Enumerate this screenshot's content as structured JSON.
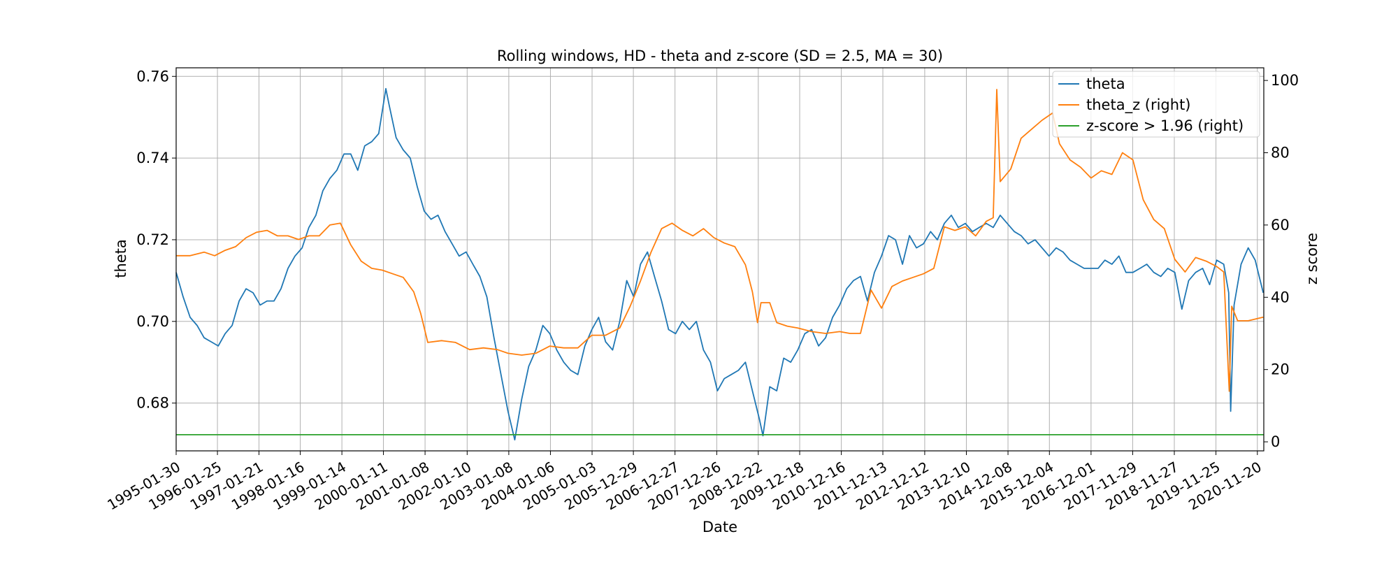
{
  "chart_data": {
    "type": "line",
    "title": "Rolling windows, HD - theta and z-score (SD = 2.5, MA = 30)",
    "xlabel": "Date",
    "ylabel": "theta",
    "y2label": "z score",
    "grid": true,
    "legend_position": "top-right",
    "x_range": [
      "1995-01-30",
      "2021-01-15"
    ],
    "ylim": [
      0.6683,
      0.7621
    ],
    "y2lim": [
      -2.5,
      103.5
    ],
    "x_ticks": [
      "1995-01-30",
      "1996-01-25",
      "1997-01-21",
      "1998-01-16",
      "1999-01-14",
      "2000-01-11",
      "2001-01-08",
      "2002-01-10",
      "2003-01-08",
      "2004-01-06",
      "2005-01-03",
      "2005-12-29",
      "2006-12-27",
      "2007-12-26",
      "2008-12-22",
      "2009-12-18",
      "2010-12-16",
      "2011-12-13",
      "2012-12-12",
      "2013-12-10",
      "2014-12-08",
      "2015-12-04",
      "2016-12-01",
      "2017-11-29",
      "2018-11-27",
      "2019-11-25",
      "2020-11-20"
    ],
    "y_ticks": [
      "0.68",
      "0.70",
      "0.72",
      "0.74",
      "0.76"
    ],
    "y2_ticks": [
      "0",
      "20",
      "40",
      "60",
      "80",
      "100"
    ],
    "series": [
      {
        "name": "theta",
        "axis": "left",
        "color": "#1f77b4",
        "points": [
          [
            "1995-01-30",
            0.712
          ],
          [
            "1995-04-01",
            0.706
          ],
          [
            "1995-06-01",
            0.701
          ],
          [
            "1995-08-01",
            0.699
          ],
          [
            "1995-10-01",
            0.696
          ],
          [
            "1995-12-01",
            0.695
          ],
          [
            "1996-02-01",
            0.694
          ],
          [
            "1996-04-01",
            0.697
          ],
          [
            "1996-06-01",
            0.699
          ],
          [
            "1996-08-01",
            0.705
          ],
          [
            "1996-10-01",
            0.708
          ],
          [
            "1996-12-01",
            0.707
          ],
          [
            "1997-02-01",
            0.704
          ],
          [
            "1997-04-01",
            0.705
          ],
          [
            "1997-06-01",
            0.705
          ],
          [
            "1997-08-01",
            0.708
          ],
          [
            "1997-10-01",
            0.713
          ],
          [
            "1997-12-01",
            0.716
          ],
          [
            "1998-02-01",
            0.718
          ],
          [
            "1998-04-01",
            0.723
          ],
          [
            "1998-06-01",
            0.726
          ],
          [
            "1998-08-01",
            0.732
          ],
          [
            "1998-10-01",
            0.735
          ],
          [
            "1998-12-01",
            0.737
          ],
          [
            "1999-02-01",
            0.741
          ],
          [
            "1999-04-01",
            0.741
          ],
          [
            "1999-06-01",
            0.737
          ],
          [
            "1999-08-01",
            0.743
          ],
          [
            "1999-10-01",
            0.744
          ],
          [
            "1999-12-01",
            0.746
          ],
          [
            "2000-02-01",
            0.757
          ],
          [
            "2000-03-01",
            0.753
          ],
          [
            "2000-05-01",
            0.745
          ],
          [
            "2000-07-01",
            0.742
          ],
          [
            "2000-09-01",
            0.74
          ],
          [
            "2000-11-01",
            0.733
          ],
          [
            "2001-01-01",
            0.727
          ],
          [
            "2001-03-01",
            0.725
          ],
          [
            "2001-05-01",
            0.726
          ],
          [
            "2001-07-01",
            0.722
          ],
          [
            "2001-09-01",
            0.719
          ],
          [
            "2001-11-01",
            0.716
          ],
          [
            "2002-01-01",
            0.717
          ],
          [
            "2002-03-01",
            0.714
          ],
          [
            "2002-05-01",
            0.711
          ],
          [
            "2002-07-01",
            0.706
          ],
          [
            "2002-09-01",
            0.696
          ],
          [
            "2002-11-01",
            0.687
          ],
          [
            "2003-01-01",
            0.678
          ],
          [
            "2003-03-01",
            0.671
          ],
          [
            "2003-05-01",
            0.681
          ],
          [
            "2003-07-01",
            0.689
          ],
          [
            "2003-09-01",
            0.693
          ],
          [
            "2003-11-01",
            0.699
          ],
          [
            "2004-01-01",
            0.697
          ],
          [
            "2004-03-01",
            0.693
          ],
          [
            "2004-05-01",
            0.69
          ],
          [
            "2004-07-01",
            0.688
          ],
          [
            "2004-09-01",
            0.687
          ],
          [
            "2004-11-01",
            0.694
          ],
          [
            "2005-01-01",
            0.698
          ],
          [
            "2005-03-01",
            0.701
          ],
          [
            "2005-05-01",
            0.695
          ],
          [
            "2005-07-01",
            0.693
          ],
          [
            "2005-09-01",
            0.7
          ],
          [
            "2005-11-01",
            0.71
          ],
          [
            "2006-01-01",
            0.706
          ],
          [
            "2006-03-01",
            0.714
          ],
          [
            "2006-05-01",
            0.717
          ],
          [
            "2006-07-01",
            0.711
          ],
          [
            "2006-09-01",
            0.705
          ],
          [
            "2006-11-01",
            0.698
          ],
          [
            "2007-01-01",
            0.697
          ],
          [
            "2007-03-01",
            0.7
          ],
          [
            "2007-05-01",
            0.698
          ],
          [
            "2007-07-01",
            0.7
          ],
          [
            "2007-09-01",
            0.693
          ],
          [
            "2007-11-01",
            0.69
          ],
          [
            "2008-01-01",
            0.683
          ],
          [
            "2008-03-01",
            0.686
          ],
          [
            "2008-05-01",
            0.687
          ],
          [
            "2008-07-01",
            0.688
          ],
          [
            "2008-09-01",
            0.69
          ],
          [
            "2008-11-01",
            0.683
          ],
          [
            "2009-01-01",
            0.676
          ],
          [
            "2009-02-01",
            0.672
          ],
          [
            "2009-04-01",
            0.684
          ],
          [
            "2009-06-01",
            0.683
          ],
          [
            "2009-08-01",
            0.691
          ],
          [
            "2009-10-01",
            0.69
          ],
          [
            "2009-12-01",
            0.693
          ],
          [
            "2010-02-01",
            0.697
          ],
          [
            "2010-04-01",
            0.698
          ],
          [
            "2010-06-01",
            0.694
          ],
          [
            "2010-08-01",
            0.696
          ],
          [
            "2010-10-01",
            0.701
          ],
          [
            "2010-12-01",
            0.704
          ],
          [
            "2011-02-01",
            0.708
          ],
          [
            "2011-04-01",
            0.71
          ],
          [
            "2011-06-01",
            0.711
          ],
          [
            "2011-08-01",
            0.705
          ],
          [
            "2011-10-01",
            0.712
          ],
          [
            "2011-12-01",
            0.716
          ],
          [
            "2012-02-01",
            0.721
          ],
          [
            "2012-04-01",
            0.72
          ],
          [
            "2012-06-01",
            0.714
          ],
          [
            "2012-08-01",
            0.721
          ],
          [
            "2012-10-01",
            0.718
          ],
          [
            "2012-12-01",
            0.719
          ],
          [
            "2013-02-01",
            0.722
          ],
          [
            "2013-04-01",
            0.72
          ],
          [
            "2013-06-01",
            0.724
          ],
          [
            "2013-08-01",
            0.726
          ],
          [
            "2013-10-01",
            0.723
          ],
          [
            "2013-12-01",
            0.724
          ],
          [
            "2014-02-01",
            0.722
          ],
          [
            "2014-04-01",
            0.723
          ],
          [
            "2014-06-01",
            0.724
          ],
          [
            "2014-08-01",
            0.723
          ],
          [
            "2014-10-01",
            0.726
          ],
          [
            "2014-12-01",
            0.724
          ],
          [
            "2015-02-01",
            0.722
          ],
          [
            "2015-04-01",
            0.721
          ],
          [
            "2015-06-01",
            0.719
          ],
          [
            "2015-08-01",
            0.72
          ],
          [
            "2015-10-01",
            0.718
          ],
          [
            "2015-12-01",
            0.716
          ],
          [
            "2016-02-01",
            0.718
          ],
          [
            "2016-04-01",
            0.717
          ],
          [
            "2016-06-01",
            0.715
          ],
          [
            "2016-08-01",
            0.714
          ],
          [
            "2016-10-01",
            0.713
          ],
          [
            "2016-12-01",
            0.713
          ],
          [
            "2017-02-01",
            0.713
          ],
          [
            "2017-04-01",
            0.715
          ],
          [
            "2017-06-01",
            0.714
          ],
          [
            "2017-08-01",
            0.716
          ],
          [
            "2017-10-01",
            0.712
          ],
          [
            "2017-12-01",
            0.712
          ],
          [
            "2018-02-01",
            0.713
          ],
          [
            "2018-04-01",
            0.714
          ],
          [
            "2018-06-01",
            0.712
          ],
          [
            "2018-08-01",
            0.711
          ],
          [
            "2018-10-01",
            0.713
          ],
          [
            "2018-12-01",
            0.712
          ],
          [
            "2019-02-01",
            0.703
          ],
          [
            "2019-04-01",
            0.71
          ],
          [
            "2019-06-01",
            0.712
          ],
          [
            "2019-08-01",
            0.713
          ],
          [
            "2019-10-01",
            0.709
          ],
          [
            "2019-12-01",
            0.715
          ],
          [
            "2020-02-01",
            0.714
          ],
          [
            "2020-03-15",
            0.707
          ],
          [
            "2020-04-01",
            0.678
          ],
          [
            "2020-05-01",
            0.704
          ],
          [
            "2020-07-01",
            0.714
          ],
          [
            "2020-09-01",
            0.718
          ],
          [
            "2020-11-01",
            0.715
          ],
          [
            "2021-01-10",
            0.707
          ]
        ]
      },
      {
        "name": "theta_z (right)",
        "axis": "right",
        "color": "#ff7f0e",
        "points": [
          [
            "1995-01-30",
            51.5
          ],
          [
            "1995-06-01",
            51.5
          ],
          [
            "1995-10-01",
            52.5
          ],
          [
            "1996-01-01",
            51.5
          ],
          [
            "1996-04-01",
            53.0
          ],
          [
            "1996-07-01",
            54.0
          ],
          [
            "1996-10-01",
            56.5
          ],
          [
            "1997-01-01",
            58.0
          ],
          [
            "1997-04-01",
            58.5
          ],
          [
            "1997-07-01",
            57.0
          ],
          [
            "1997-10-01",
            57.0
          ],
          [
            "1998-01-01",
            56.0
          ],
          [
            "1998-04-01",
            57.0
          ],
          [
            "1998-07-01",
            57.0
          ],
          [
            "1998-10-01",
            60.0
          ],
          [
            "1999-01-01",
            60.5
          ],
          [
            "1999-04-01",
            54.5
          ],
          [
            "1999-07-01",
            50.0
          ],
          [
            "1999-10-01",
            48.0
          ],
          [
            "2000-01-01",
            47.5
          ],
          [
            "2000-04-01",
            46.5
          ],
          [
            "2000-07-01",
            45.5
          ],
          [
            "2000-10-01",
            41.5
          ],
          [
            "2000-12-01",
            35.5
          ],
          [
            "2001-02-01",
            27.5
          ],
          [
            "2001-06-01",
            28.0
          ],
          [
            "2001-10-01",
            27.5
          ],
          [
            "2002-02-01",
            25.5
          ],
          [
            "2002-06-01",
            26.0
          ],
          [
            "2002-10-01",
            25.5
          ],
          [
            "2003-01-01",
            24.5
          ],
          [
            "2003-05-01",
            24.0
          ],
          [
            "2003-09-01",
            24.5
          ],
          [
            "2004-01-01",
            26.5
          ],
          [
            "2004-05-01",
            26.0
          ],
          [
            "2004-09-01",
            26.0
          ],
          [
            "2005-01-01",
            29.5
          ],
          [
            "2005-05-01",
            29.5
          ],
          [
            "2005-09-01",
            31.5
          ],
          [
            "2005-12-01",
            37.5
          ],
          [
            "2006-03-01",
            44.5
          ],
          [
            "2006-06-01",
            52.5
          ],
          [
            "2006-09-01",
            59.0
          ],
          [
            "2006-12-01",
            60.5
          ],
          [
            "2007-03-01",
            58.5
          ],
          [
            "2007-06-01",
            57.0
          ],
          [
            "2007-09-01",
            59.0
          ],
          [
            "2007-12-01",
            56.5
          ],
          [
            "2008-03-01",
            55.0
          ],
          [
            "2008-06-01",
            54.0
          ],
          [
            "2008-09-01",
            49.0
          ],
          [
            "2008-11-01",
            41.5
          ],
          [
            "2008-12-15",
            33.0
          ],
          [
            "2009-01-15",
            38.5
          ],
          [
            "2009-04-01",
            38.5
          ],
          [
            "2009-06-01",
            33.0
          ],
          [
            "2009-09-01",
            32.0
          ],
          [
            "2009-12-01",
            31.5
          ],
          [
            "2010-04-01",
            30.5
          ],
          [
            "2010-08-01",
            30.0
          ],
          [
            "2010-12-01",
            30.5
          ],
          [
            "2011-03-01",
            30.0
          ],
          [
            "2011-06-01",
            30.0
          ],
          [
            "2011-09-01",
            42.0
          ],
          [
            "2011-12-01",
            37.0
          ],
          [
            "2012-03-01",
            43.0
          ],
          [
            "2012-06-01",
            44.5
          ],
          [
            "2012-09-01",
            45.5
          ],
          [
            "2012-12-01",
            46.5
          ],
          [
            "2013-03-01",
            48.0
          ],
          [
            "2013-06-01",
            59.5
          ],
          [
            "2013-09-01",
            58.5
          ],
          [
            "2013-12-01",
            59.5
          ],
          [
            "2014-03-01",
            57.0
          ],
          [
            "2014-06-01",
            61.0
          ],
          [
            "2014-08-01",
            62.0
          ],
          [
            "2014-09-01",
            97.5
          ],
          [
            "2014-10-01",
            72.0
          ],
          [
            "2015-01-01",
            75.5
          ],
          [
            "2015-04-01",
            84.0
          ],
          [
            "2015-07-01",
            86.5
          ],
          [
            "2015-10-01",
            89.0
          ],
          [
            "2016-01-01",
            91.0
          ],
          [
            "2016-03-01",
            82.5
          ],
          [
            "2016-06-01",
            78.0
          ],
          [
            "2016-09-01",
            76.0
          ],
          [
            "2016-12-01",
            73.0
          ],
          [
            "2017-03-01",
            75.0
          ],
          [
            "2017-06-01",
            74.0
          ],
          [
            "2017-09-01",
            80.0
          ],
          [
            "2017-12-01",
            78.0
          ],
          [
            "2018-03-01",
            67.0
          ],
          [
            "2018-06-01",
            61.5
          ],
          [
            "2018-09-01",
            59.0
          ],
          [
            "2018-12-01",
            50.5
          ],
          [
            "2019-03-01",
            47.0
          ],
          [
            "2019-06-01",
            51.0
          ],
          [
            "2019-09-01",
            50.0
          ],
          [
            "2019-12-01",
            48.5
          ],
          [
            "2020-02-01",
            47.0
          ],
          [
            "2020-03-20",
            14.0
          ],
          [
            "2020-04-10",
            37.5
          ],
          [
            "2020-06-01",
            33.5
          ],
          [
            "2020-09-01",
            33.5
          ],
          [
            "2021-01-10",
            34.5
          ]
        ]
      },
      {
        "name": "z-score > 1.96 (right)",
        "axis": "right",
        "color": "#2ca02c",
        "points": [
          [
            "1995-01-30",
            1.96
          ],
          [
            "2021-01-15",
            1.96
          ]
        ]
      }
    ]
  }
}
